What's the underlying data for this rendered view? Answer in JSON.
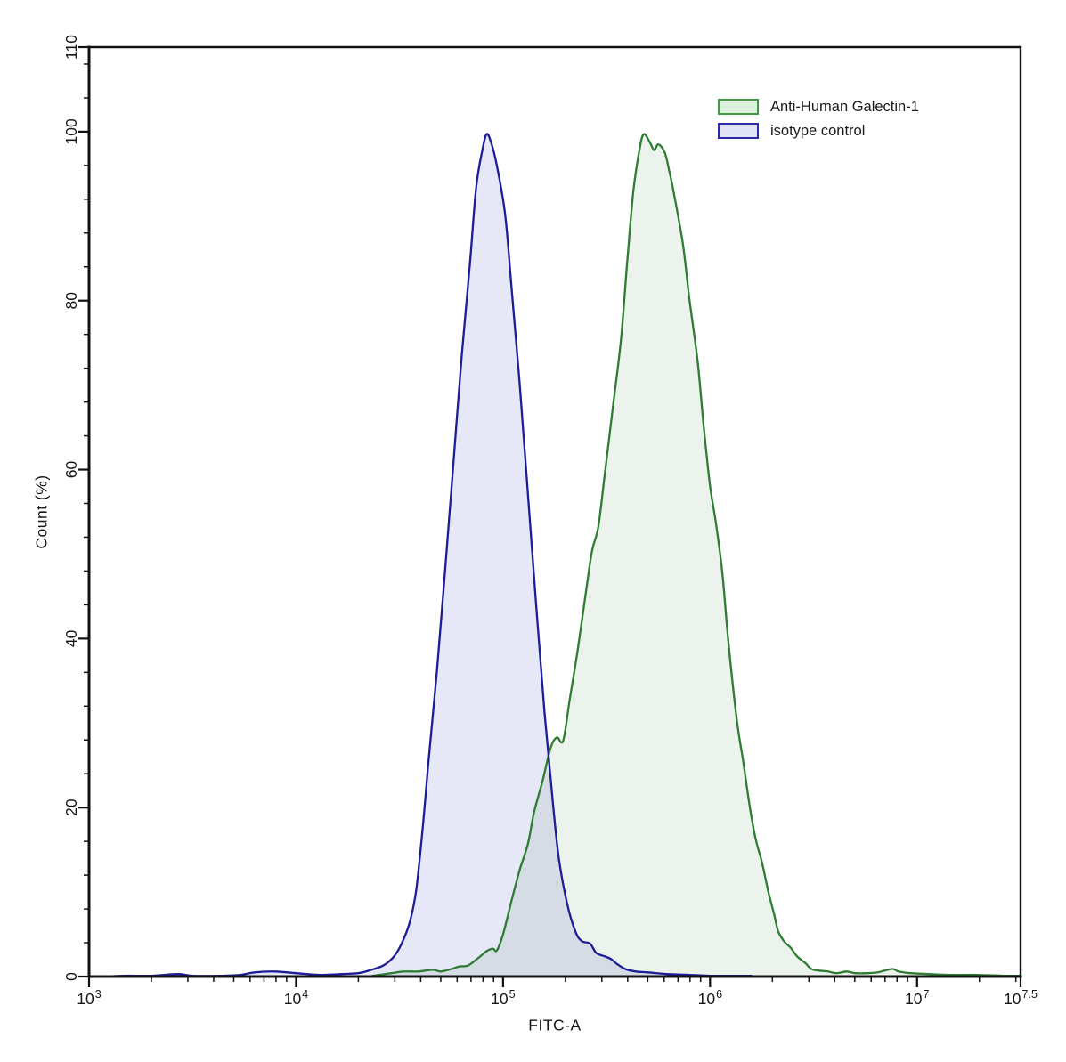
{
  "chart_data": {
    "type": "area",
    "subtype": "flow-cytometry-overlay-histogram",
    "title": "",
    "xlabel": "FITC-A",
    "ylabel": "Count (%)",
    "xscale": "log10",
    "xlim_log10": [
      3,
      7.5
    ],
    "ylim": [
      0,
      110
    ],
    "grid": false,
    "frame": true,
    "legend_position": "top-right",
    "x_major_ticks": [
      {
        "log10": 3,
        "base": "10",
        "exponent": "3"
      },
      {
        "log10": 4,
        "base": "10",
        "exponent": "4"
      },
      {
        "log10": 5,
        "base": "10",
        "exponent": "5"
      },
      {
        "log10": 6,
        "base": "10",
        "exponent": "6"
      },
      {
        "log10": 7,
        "base": "10",
        "exponent": "7"
      },
      {
        "log10": 7.5,
        "base": "10",
        "exponent": "7.5"
      }
    ],
    "x_minor_tick_multipliers": [
      2,
      3,
      4,
      5,
      6,
      7,
      8,
      9
    ],
    "y_major_ticks": [
      0,
      20,
      40,
      60,
      80,
      100,
      110
    ],
    "y_minor_tick_step": 4,
    "axis_color": "#111111",
    "series": [
      {
        "name": "Anti-Human Galectin-1",
        "stroke": "#2e7d33",
        "fill": "rgba(70,140,70,0.10)",
        "swatch_fill": "#ddf2dd",
        "swatch_stroke": "#3f9c43",
        "peak_log10x": 5.68,
        "peak_pct": 100,
        "points_log10x_pct": [
          [
            4.37,
            0.1
          ],
          [
            4.46,
            0.4
          ],
          [
            4.52,
            0.6
          ],
          [
            4.59,
            0.6
          ],
          [
            4.66,
            0.8
          ],
          [
            4.7,
            0.6
          ],
          [
            4.75,
            0.9
          ],
          [
            4.79,
            1.2
          ],
          [
            4.83,
            1.3
          ],
          [
            4.88,
            2.2
          ],
          [
            4.92,
            3.0
          ],
          [
            4.95,
            3.3
          ],
          [
            4.97,
            3.1
          ],
          [
            5.0,
            5.0
          ],
          [
            5.04,
            8.9
          ],
          [
            5.08,
            12.6
          ],
          [
            5.12,
            15.7
          ],
          [
            5.15,
            19.5
          ],
          [
            5.19,
            23.1
          ],
          [
            5.23,
            27.1
          ],
          [
            5.26,
            28.3
          ],
          [
            5.29,
            27.9
          ],
          [
            5.32,
            32.5
          ],
          [
            5.36,
            38.6
          ],
          [
            5.4,
            45.5
          ],
          [
            5.43,
            50.4
          ],
          [
            5.46,
            53.2
          ],
          [
            5.49,
            59.2
          ],
          [
            5.53,
            67.3
          ],
          [
            5.57,
            75.5
          ],
          [
            5.6,
            84.7
          ],
          [
            5.63,
            93.1
          ],
          [
            5.66,
            98.0
          ],
          [
            5.68,
            99.7
          ],
          [
            5.71,
            98.7
          ],
          [
            5.73,
            97.8
          ],
          [
            5.75,
            98.5
          ],
          [
            5.78,
            97.6
          ],
          [
            5.8,
            95.7
          ],
          [
            5.83,
            92.1
          ],
          [
            5.87,
            86.5
          ],
          [
            5.9,
            80.2
          ],
          [
            5.94,
            72.8
          ],
          [
            5.97,
            64.9
          ],
          [
            6.0,
            58.1
          ],
          [
            6.03,
            53.4
          ],
          [
            6.06,
            47.6
          ],
          [
            6.09,
            39.2
          ],
          [
            6.13,
            30.2
          ],
          [
            6.16,
            25.5
          ],
          [
            6.19,
            20.4
          ],
          [
            6.22,
            16.3
          ],
          [
            6.25,
            13.6
          ],
          [
            6.28,
            10.2
          ],
          [
            6.31,
            7.3
          ],
          [
            6.33,
            5.3
          ],
          [
            6.36,
            4.1
          ],
          [
            6.39,
            3.4
          ],
          [
            6.42,
            2.4
          ],
          [
            6.46,
            1.6
          ],
          [
            6.49,
            0.9
          ],
          [
            6.53,
            0.7
          ],
          [
            6.57,
            0.6
          ],
          [
            6.61,
            0.4
          ],
          [
            6.66,
            0.6
          ],
          [
            6.7,
            0.4
          ],
          [
            6.76,
            0.4
          ],
          [
            6.81,
            0.5
          ],
          [
            6.88,
            0.9
          ],
          [
            6.91,
            0.6
          ],
          [
            6.97,
            0.4
          ],
          [
            7.06,
            0.3
          ],
          [
            7.16,
            0.2
          ],
          [
            7.29,
            0.2
          ],
          [
            7.42,
            0.1
          ],
          [
            7.5,
            0.1
          ]
        ]
      },
      {
        "name": "isotype control",
        "stroke": "#1d1d96",
        "fill": "rgba(80,88,200,0.14)",
        "swatch_fill": "#e2e4f8",
        "swatch_stroke": "#2a2aa8",
        "peak_log10x": 4.92,
        "peak_pct": 100,
        "points_log10x_pct": [
          [
            3.08,
            0.0
          ],
          [
            3.17,
            0.1
          ],
          [
            3.3,
            0.1
          ],
          [
            3.43,
            0.3
          ],
          [
            3.5,
            0.1
          ],
          [
            3.64,
            0.1
          ],
          [
            3.73,
            0.2
          ],
          [
            3.8,
            0.5
          ],
          [
            3.9,
            0.6
          ],
          [
            4.0,
            0.4
          ],
          [
            4.12,
            0.2
          ],
          [
            4.22,
            0.3
          ],
          [
            4.3,
            0.4
          ],
          [
            4.35,
            0.7
          ],
          [
            4.42,
            1.3
          ],
          [
            4.47,
            2.3
          ],
          [
            4.51,
            3.9
          ],
          [
            4.55,
            6.5
          ],
          [
            4.58,
            10.2
          ],
          [
            4.61,
            17.1
          ],
          [
            4.64,
            25.5
          ],
          [
            4.68,
            36.0
          ],
          [
            4.72,
            48.1
          ],
          [
            4.76,
            60.7
          ],
          [
            4.8,
            73.4
          ],
          [
            4.84,
            84.4
          ],
          [
            4.87,
            93.4
          ],
          [
            4.9,
            97.8
          ],
          [
            4.92,
            99.7
          ],
          [
            4.94,
            98.9
          ],
          [
            4.97,
            96.0
          ],
          [
            5.01,
            90.2
          ],
          [
            5.04,
            81.8
          ],
          [
            5.08,
            70.2
          ],
          [
            5.12,
            57.1
          ],
          [
            5.16,
            43.9
          ],
          [
            5.2,
            31.3
          ],
          [
            5.24,
            20.7
          ],
          [
            5.27,
            13.9
          ],
          [
            5.31,
            8.6
          ],
          [
            5.35,
            5.3
          ],
          [
            5.38,
            4.2
          ],
          [
            5.42,
            3.9
          ],
          [
            5.45,
            2.8
          ],
          [
            5.49,
            2.4
          ],
          [
            5.52,
            2.1
          ],
          [
            5.55,
            1.5
          ],
          [
            5.59,
            0.9
          ],
          [
            5.64,
            0.6
          ],
          [
            5.7,
            0.5
          ],
          [
            5.79,
            0.3
          ],
          [
            5.9,
            0.2
          ],
          [
            6.0,
            0.1
          ],
          [
            6.1,
            0.1
          ],
          [
            6.2,
            0.1
          ]
        ]
      }
    ]
  },
  "legend": {
    "items": [
      {
        "label": "Anti-Human Galectin-1"
      },
      {
        "label": "isotype control"
      }
    ]
  }
}
